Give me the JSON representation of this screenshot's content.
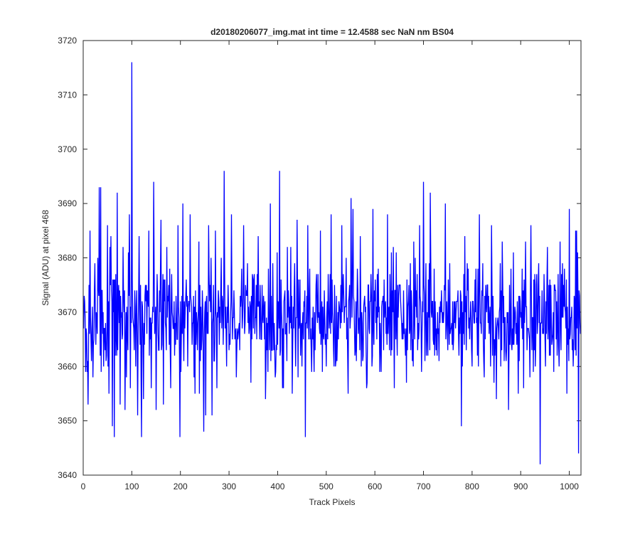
{
  "chart_data": {
    "type": "line",
    "title": "d20180206077_img.mat int time = 12.4588 sec  NaN nm BS04",
    "xlabel": "Track Pixels",
    "ylabel": "Signal (ADU) at pixel 468",
    "xlim": [
      0,
      1024
    ],
    "ylim": [
      3640,
      3720
    ],
    "xticks": [
      0,
      100,
      200,
      300,
      400,
      500,
      600,
      700,
      800,
      900,
      1000
    ],
    "yticks": [
      3640,
      3650,
      3660,
      3670,
      3680,
      3690,
      3700,
      3710,
      3720
    ],
    "grid": false,
    "legend": "none",
    "series": [
      {
        "color": "#0000ff",
        "x_start": 1,
        "x_step": 1,
        "approx_mean": 3669,
        "approx_noise_range": [
          3650,
          3690
        ],
        "anchor_points": [
          [
            1,
            3667
          ],
          [
            5,
            3659
          ],
          [
            10,
            3653
          ],
          [
            14,
            3685
          ],
          [
            20,
            3658
          ],
          [
            30,
            3680
          ],
          [
            33,
            3693
          ],
          [
            36,
            3693
          ],
          [
            42,
            3660
          ],
          [
            50,
            3686
          ],
          [
            53,
            3655
          ],
          [
            57,
            3684
          ],
          [
            60,
            3649
          ],
          [
            62,
            3670
          ],
          [
            64,
            3647
          ],
          [
            66,
            3662
          ],
          [
            70,
            3692
          ],
          [
            76,
            3653
          ],
          [
            82,
            3682
          ],
          [
            86,
            3652
          ],
          [
            95,
            3688
          ],
          [
            100,
            3716
          ],
          [
            101,
            3676
          ],
          [
            105,
            3663
          ],
          [
            112,
            3651
          ],
          [
            115,
            3684
          ],
          [
            120,
            3647
          ],
          [
            128,
            3675
          ],
          [
            135,
            3685
          ],
          [
            140,
            3656
          ],
          [
            145,
            3694
          ],
          [
            150,
            3652
          ],
          [
            160,
            3687
          ],
          [
            165,
            3653
          ],
          [
            172,
            3682
          ],
          [
            180,
            3656
          ],
          [
            188,
            3662
          ],
          [
            195,
            3686
          ],
          [
            199,
            3647
          ],
          [
            205,
            3690
          ],
          [
            215,
            3660
          ],
          [
            220,
            3688
          ],
          [
            230,
            3655
          ],
          [
            238,
            3683
          ],
          [
            248,
            3648
          ],
          [
            252,
            3651
          ],
          [
            258,
            3686
          ],
          [
            265,
            3651
          ],
          [
            272,
            3685
          ],
          [
            280,
            3664
          ],
          [
            290,
            3696
          ],
          [
            295,
            3660
          ],
          [
            305,
            3688
          ],
          [
            315,
            3658
          ],
          [
            330,
            3686
          ],
          [
            345,
            3657
          ],
          [
            360,
            3684
          ],
          [
            375,
            3654
          ],
          [
            385,
            3690
          ],
          [
            395,
            3658
          ],
          [
            404,
            3696
          ],
          [
            412,
            3656
          ],
          [
            420,
            3682
          ],
          [
            430,
            3655
          ],
          [
            440,
            3687
          ],
          [
            450,
            3660
          ],
          [
            457,
            3647
          ],
          [
            462,
            3686
          ],
          [
            475,
            3659
          ],
          [
            488,
            3685
          ],
          [
            500,
            3660
          ],
          [
            510,
            3688
          ],
          [
            520,
            3661
          ],
          [
            532,
            3686
          ],
          [
            545,
            3655
          ],
          [
            551,
            3691
          ],
          [
            555,
            3689
          ],
          [
            560,
            3663
          ],
          [
            570,
            3684
          ],
          [
            584,
            3657
          ],
          [
            596,
            3689
          ],
          [
            610,
            3659
          ],
          [
            626,
            3688
          ],
          [
            640,
            3656
          ],
          [
            652,
            3675
          ],
          [
            665,
            3657
          ],
          [
            680,
            3683
          ],
          [
            692,
            3686
          ],
          [
            700,
            3694
          ],
          [
            708,
            3670
          ],
          [
            714,
            3692
          ],
          [
            725,
            3667
          ],
          [
            745,
            3690
          ],
          [
            760,
            3672
          ],
          [
            775,
            3666
          ],
          [
            778,
            3649
          ],
          [
            785,
            3684
          ],
          [
            800,
            3660
          ],
          [
            815,
            3688
          ],
          [
            825,
            3658
          ],
          [
            840,
            3686
          ],
          [
            850,
            3654
          ],
          [
            862,
            3683
          ],
          [
            875,
            3652
          ],
          [
            885,
            3681
          ],
          [
            895,
            3655
          ],
          [
            910,
            3683
          ],
          [
            921,
            3686
          ],
          [
            930,
            3660
          ],
          [
            940,
            3642
          ],
          [
            946,
            3667
          ],
          [
            955,
            3682
          ],
          [
            968,
            3659
          ],
          [
            981,
            3683
          ],
          [
            995,
            3655
          ],
          [
            1000,
            3689
          ],
          [
            1008,
            3660
          ],
          [
            1015,
            3685
          ],
          [
            1019,
            3644
          ],
          [
            1023,
            3666
          ]
        ]
      }
    ]
  }
}
